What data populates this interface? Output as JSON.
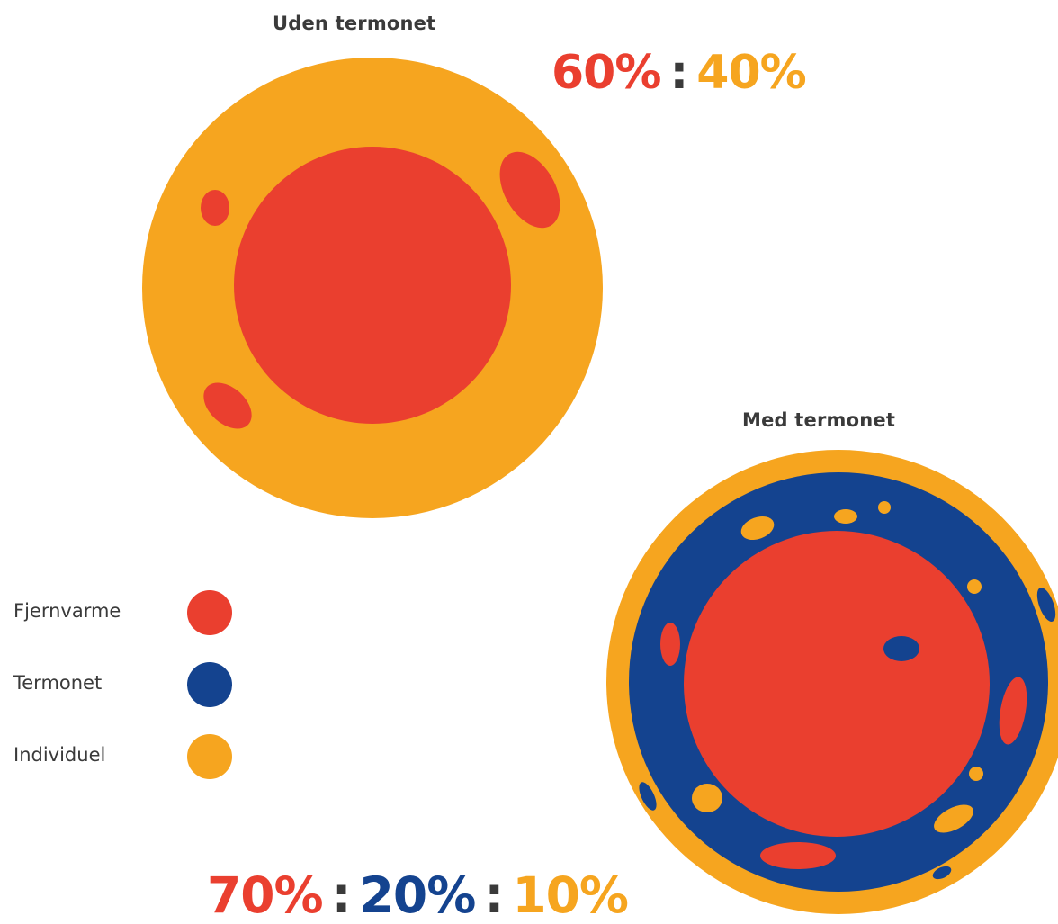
{
  "colors": {
    "fjernvarme": "#EA3F2F",
    "termonet": "#14438F",
    "individuel": "#F6A51F",
    "text": "#3a3a3a"
  },
  "uden": {
    "title": "Uden termonet",
    "ratio": {
      "fjernvarme": "60%",
      "separator": ":",
      "individuel": "40%"
    }
  },
  "med": {
    "title": "Med termonet",
    "ratio": {
      "fjernvarme": "70%",
      "separator1": ":",
      "termonet": "20%",
      "separator2": ":",
      "individuel": "10%"
    }
  },
  "legend": {
    "items": [
      {
        "label": "Fjernvarme",
        "key": "fjernvarme"
      },
      {
        "label": "Termonet",
        "key": "termonet"
      },
      {
        "label": "Individuel",
        "key": "individuel"
      }
    ]
  }
}
